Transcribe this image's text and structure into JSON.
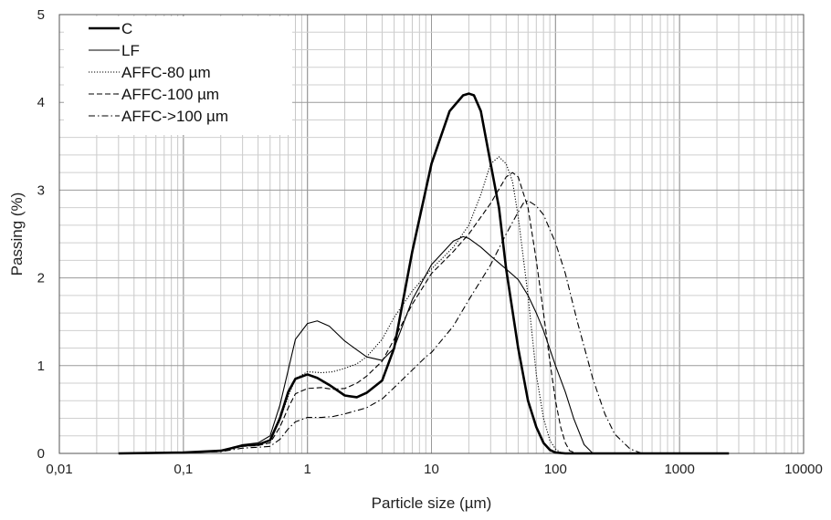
{
  "chart_data": {
    "type": "line",
    "title": "",
    "xlabel": "Particle size (µm)",
    "ylabel": "Passing (%)",
    "x_scale": "log",
    "xlim": [
      0.01,
      10000
    ],
    "ylim": [
      0,
      5
    ],
    "grid": true,
    "legend_position": "top-left",
    "x_ticks": [
      {
        "value": 0.01,
        "label": "0,01"
      },
      {
        "value": 0.1,
        "label": "0,1"
      },
      {
        "value": 1,
        "label": "1"
      },
      {
        "value": 10,
        "label": "10"
      },
      {
        "value": 100,
        "label": "100"
      },
      {
        "value": 1000,
        "label": "1000"
      },
      {
        "value": 10000,
        "label": "10000"
      }
    ],
    "y_ticks": [
      {
        "value": 0,
        "label": "0"
      },
      {
        "value": 1,
        "label": "1"
      },
      {
        "value": 2,
        "label": "2"
      },
      {
        "value": 3,
        "label": "3"
      },
      {
        "value": 4,
        "label": "4"
      },
      {
        "value": 5,
        "label": "5"
      }
    ],
    "series": [
      {
        "name": "C",
        "style": "solid-thick",
        "color": "#000000",
        "x": [
          0.03,
          0.1,
          0.2,
          0.3,
          0.4,
          0.5,
          0.6,
          0.7,
          0.8,
          1.0,
          1.2,
          1.5,
          2.0,
          2.5,
          3.0,
          4.0,
          5.0,
          7.0,
          10,
          14,
          18,
          20,
          22,
          25,
          30,
          35,
          40,
          50,
          60,
          70,
          80,
          90,
          100,
          120,
          150,
          2500
        ],
        "y": [
          0,
          0.01,
          0.03,
          0.09,
          0.1,
          0.15,
          0.4,
          0.7,
          0.85,
          0.9,
          0.86,
          0.78,
          0.66,
          0.64,
          0.69,
          0.83,
          1.2,
          2.3,
          3.3,
          3.9,
          4.08,
          4.1,
          4.08,
          3.9,
          3.3,
          2.8,
          2.1,
          1.2,
          0.6,
          0.3,
          0.12,
          0.04,
          0.01,
          0,
          0,
          0
        ]
      },
      {
        "name": "LF",
        "style": "solid-thin",
        "color": "#000000",
        "x": [
          0.03,
          0.1,
          0.2,
          0.3,
          0.4,
          0.5,
          0.6,
          0.7,
          0.8,
          1.0,
          1.2,
          1.5,
          2.0,
          2.5,
          3.0,
          4.0,
          5.0,
          7.0,
          10,
          15,
          18,
          20,
          25,
          30,
          40,
          50,
          60,
          70,
          80,
          100,
          120,
          140,
          170,
          200,
          2500
        ],
        "y": [
          0,
          0.01,
          0.03,
          0.1,
          0.12,
          0.2,
          0.55,
          0.95,
          1.3,
          1.48,
          1.51,
          1.45,
          1.28,
          1.18,
          1.1,
          1.06,
          1.2,
          1.75,
          2.15,
          2.42,
          2.47,
          2.45,
          2.35,
          2.25,
          2.1,
          1.98,
          1.8,
          1.6,
          1.4,
          1.0,
          0.7,
          0.4,
          0.1,
          0,
          0
        ]
      },
      {
        "name": "AFFC-80 µm",
        "style": "dotted",
        "color": "#000000",
        "x": [
          0.03,
          0.1,
          0.2,
          0.3,
          0.4,
          0.5,
          0.6,
          0.7,
          0.8,
          1.0,
          1.3,
          1.6,
          2.0,
          2.5,
          3.0,
          4.0,
          5.0,
          7.0,
          10,
          15,
          20,
          25,
          30,
          35,
          40,
          45,
          50,
          60,
          70,
          80,
          90,
          100,
          110,
          120
        ],
        "y": [
          0,
          0.01,
          0.03,
          0.09,
          0.1,
          0.15,
          0.38,
          0.65,
          0.85,
          0.93,
          0.92,
          0.93,
          0.97,
          1.02,
          1.1,
          1.3,
          1.55,
          1.85,
          2.1,
          2.35,
          2.6,
          2.95,
          3.3,
          3.38,
          3.3,
          3.1,
          2.7,
          1.8,
          0.9,
          0.4,
          0.15,
          0.05,
          0.01,
          0
        ]
      },
      {
        "name": "AFFC-100 µm",
        "style": "dashed",
        "color": "#000000",
        "x": [
          0.03,
          0.1,
          0.2,
          0.3,
          0.4,
          0.5,
          0.6,
          0.7,
          0.8,
          1.0,
          1.3,
          1.6,
          2.0,
          2.5,
          3.0,
          4.0,
          5.0,
          7.0,
          10,
          15,
          20,
          30,
          40,
          45,
          50,
          60,
          70,
          80,
          90,
          100,
          110,
          120,
          130,
          150
        ],
        "y": [
          0,
          0.01,
          0.03,
          0.08,
          0.09,
          0.12,
          0.3,
          0.52,
          0.68,
          0.74,
          0.75,
          0.73,
          0.74,
          0.8,
          0.88,
          1.05,
          1.3,
          1.7,
          2.05,
          2.3,
          2.5,
          2.85,
          3.15,
          3.2,
          3.15,
          2.8,
          2.2,
          1.6,
          1.05,
          0.6,
          0.3,
          0.12,
          0.03,
          0
        ]
      },
      {
        "name": "AFFC->100 µm",
        "style": "dashdot",
        "color": "#000000",
        "x": [
          0.03,
          0.1,
          0.2,
          0.3,
          0.4,
          0.5,
          0.6,
          0.7,
          0.8,
          1.0,
          1.3,
          1.6,
          2.0,
          3.0,
          4.0,
          5.0,
          7.0,
          9.0,
          10,
          15,
          20,
          30,
          40,
          50,
          55,
          60,
          70,
          80,
          100,
          120,
          150,
          200,
          250,
          300,
          400,
          500
        ],
        "y": [
          0,
          0.01,
          0.02,
          0.06,
          0.07,
          0.08,
          0.16,
          0.28,
          0.36,
          0.41,
          0.41,
          0.42,
          0.45,
          0.52,
          0.62,
          0.75,
          0.95,
          1.1,
          1.15,
          1.45,
          1.75,
          2.15,
          2.5,
          2.75,
          2.85,
          2.88,
          2.82,
          2.72,
          2.4,
          2.05,
          1.5,
          0.85,
          0.45,
          0.22,
          0.05,
          0
        ]
      }
    ]
  }
}
